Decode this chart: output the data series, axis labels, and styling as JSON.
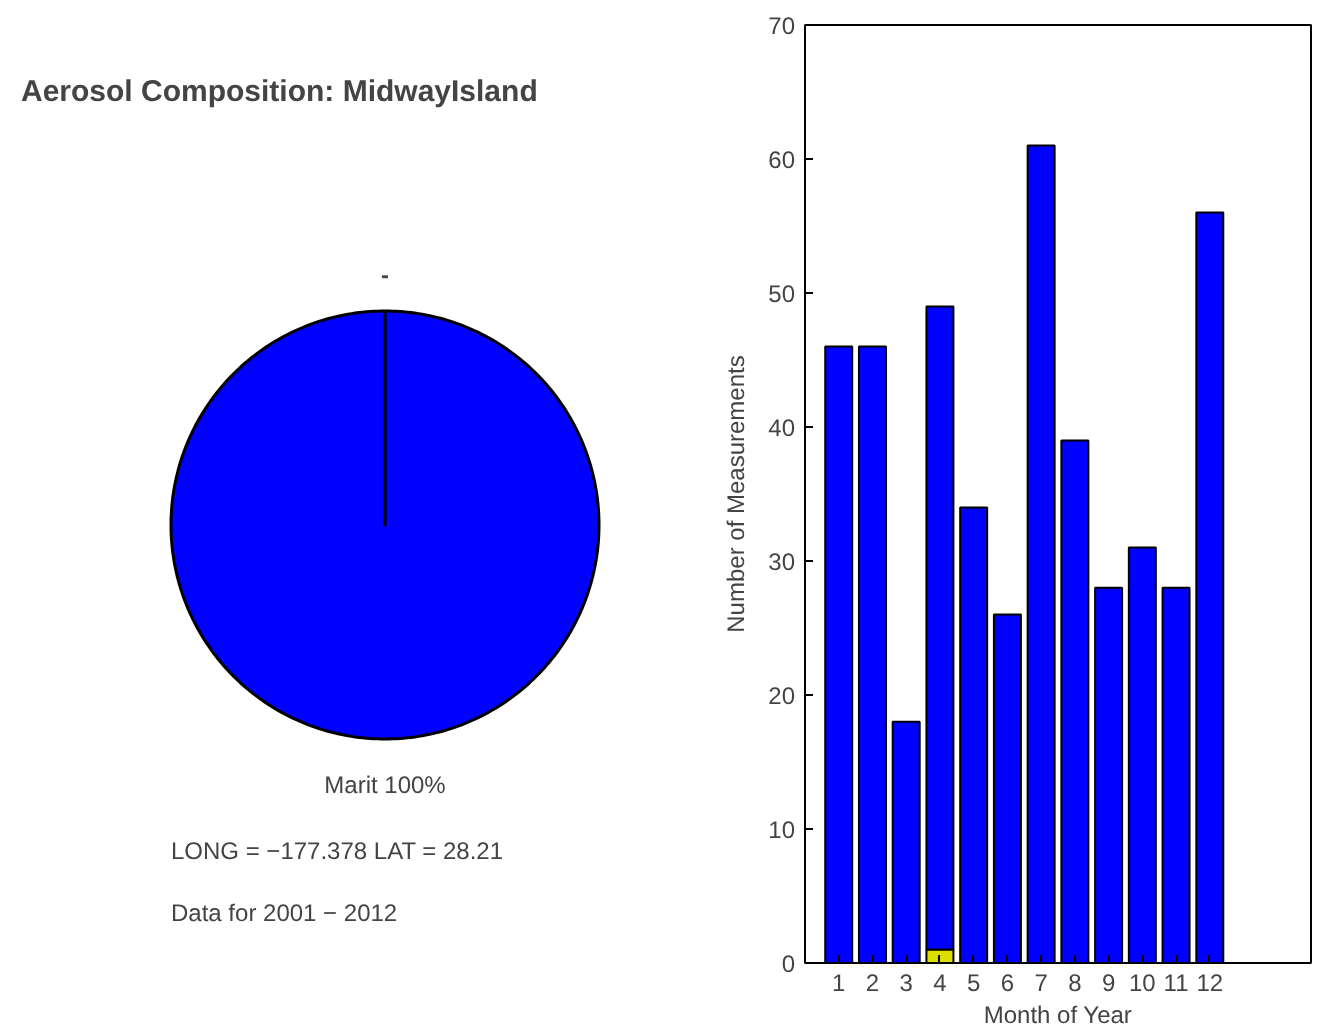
{
  "chart_data": [
    {
      "type": "pie",
      "title": "Aerosol Composition: MidwayIsland",
      "categories": [
        "Marit 100%"
      ],
      "values": [
        100
      ],
      "colors": [
        "#0000ff"
      ],
      "annotations": [
        "-",
        "LONG = −177.378 LAT = 28.21",
        "Data for 2001 − 2012"
      ]
    },
    {
      "type": "bar",
      "stacked": true,
      "xlabel": "Month of Year",
      "ylabel": "Number of Measurements",
      "x": [
        1,
        2,
        3,
        4,
        5,
        6,
        7,
        8,
        9,
        10,
        11,
        12
      ],
      "series": [
        {
          "color": "#dddd00",
          "values": [
            null,
            null,
            null,
            1,
            null,
            null,
            null,
            null,
            null,
            null,
            null,
            null
          ]
        },
        {
          "color": "#0000ff",
          "values": [
            46,
            46,
            18,
            48,
            34,
            26,
            61,
            39,
            28,
            31,
            28,
            56
          ]
        }
      ],
      "xlim": [
        0,
        15
      ],
      "xticks": [
        1,
        2,
        3,
        4,
        5,
        6,
        7,
        8,
        9,
        10,
        11,
        12
      ],
      "ylim": [
        0,
        70
      ],
      "yticks": [
        0,
        10,
        20,
        30,
        40,
        50,
        60,
        70
      ],
      "grid": false
    }
  ]
}
